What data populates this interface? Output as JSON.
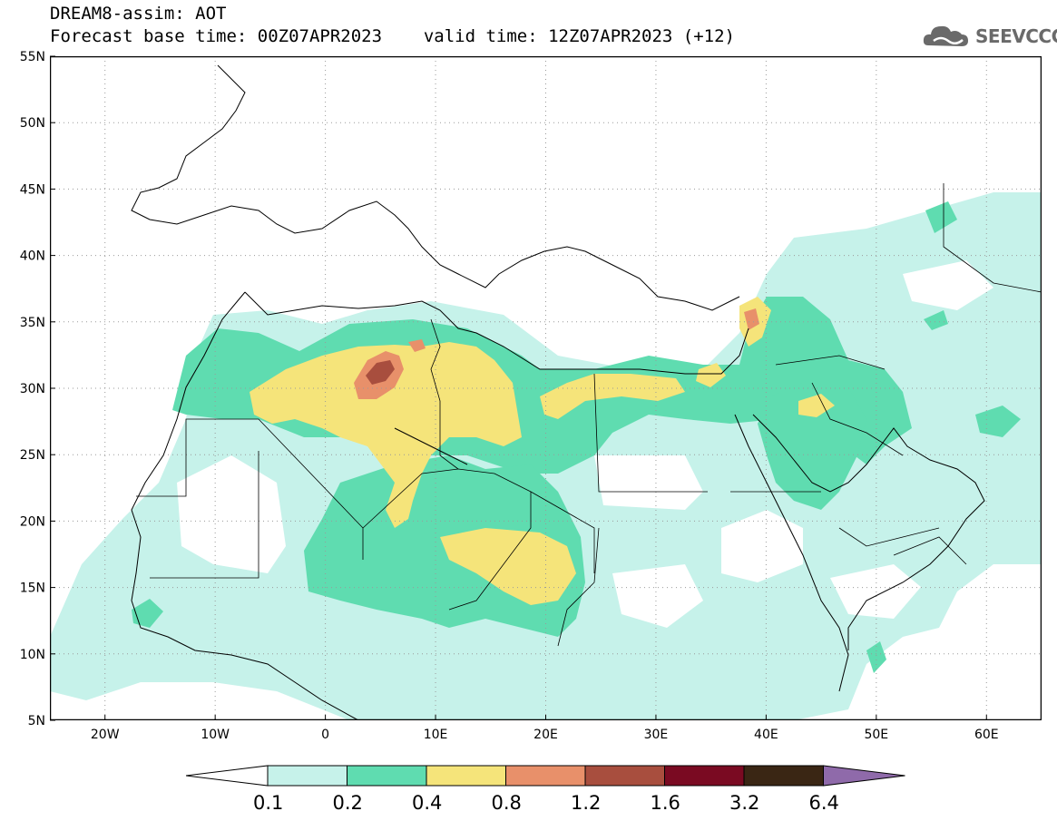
{
  "header": {
    "title": "DREAM8-assim: AOT",
    "subtitle_base": "Forecast base time: 00Z07APR2023",
    "subtitle_valid": "valid time: 12Z07APR2023 (+12)"
  },
  "logo": {
    "name": "cloud-logo-icon",
    "text": "SEEVCCC"
  },
  "axes": {
    "lat_labels": [
      "55N",
      "50N",
      "45N",
      "40N",
      "35N",
      "30N",
      "25N",
      "20N",
      "15N",
      "10N",
      "5N"
    ],
    "lat_values": [
      55,
      50,
      45,
      40,
      35,
      30,
      25,
      20,
      15,
      10,
      5
    ],
    "lon_labels": [
      "20W",
      "10W",
      "0",
      "10E",
      "20E",
      "30E",
      "40E",
      "50E",
      "60E"
    ],
    "lon_values": [
      -20,
      -10,
      0,
      10,
      20,
      30,
      40,
      50,
      60
    ],
    "lon_range": [
      -25,
      65
    ],
    "lat_range": [
      5,
      55
    ]
  },
  "legend": {
    "levels": [
      "0.1",
      "0.2",
      "0.4",
      "0.8",
      "1.2",
      "1.6",
      "3.2",
      "6.4"
    ],
    "colors": [
      "#c6f2ea",
      "#5fdcb0",
      "#f5e47a",
      "#e8906a",
      "#a84e3e",
      "#7a0a22",
      "#3a2614",
      "#8f6aaa"
    ],
    "under_color": "#ffffff"
  },
  "colors": {
    "aot_01": "#c6f2ea",
    "aot_02": "#5fdcb0",
    "aot_04": "#f5e47a",
    "aot_08": "#e8906a",
    "aot_12": "#a84e3e"
  }
}
